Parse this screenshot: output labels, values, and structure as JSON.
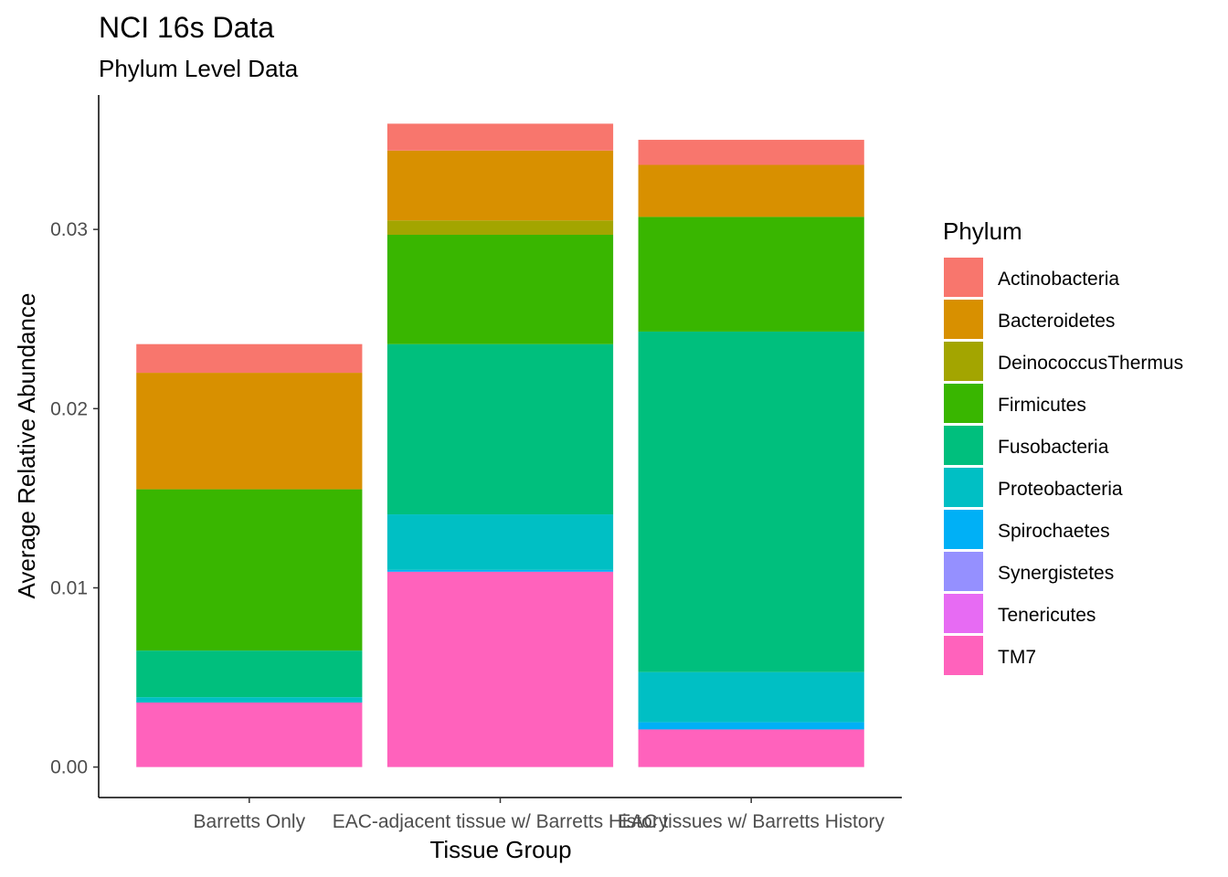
{
  "chart_data": {
    "type": "bar",
    "stacked": true,
    "title": "NCI 16s Data",
    "subtitle": "Phylum Level Data",
    "xlabel": "Tissue Group",
    "ylabel": "Average Relative Abundance",
    "categories": [
      "Barretts Only",
      "EAC-adjacent tissue w/ Barretts History",
      "EAC tissues w/ Barretts History"
    ],
    "ylim": [
      -0.0017,
      0.0375
    ],
    "yticks": [
      "0.00",
      "0.01",
      "0.02",
      "0.03"
    ],
    "yticks_values": [
      0,
      0.01,
      0.02,
      0.03
    ],
    "grid": false,
    "legend_title": "Phylum",
    "legend_position": "right",
    "series": [
      {
        "name": "Actinobacteria",
        "color": "#F8766D",
        "values": [
          0.0016,
          0.0015,
          0.0014
        ]
      },
      {
        "name": "Bacteroidetes",
        "color": "#D89000",
        "values": [
          0.0065,
          0.0039,
          0.0029
        ]
      },
      {
        "name": "DeinococcusThermus",
        "color": "#A3A500",
        "values": [
          0.0,
          0.0008,
          0.0
        ]
      },
      {
        "name": "Firmicutes",
        "color": "#39B600",
        "values": [
          0.009,
          0.0061,
          0.0064
        ]
      },
      {
        "name": "Fusobacteria",
        "color": "#00BF7D",
        "values": [
          0.0026,
          0.0095,
          0.019
        ]
      },
      {
        "name": "Proteobacteria",
        "color": "#00BFC4",
        "values": [
          0.0003,
          0.0031,
          0.0028
        ]
      },
      {
        "name": "Spirochaetes",
        "color": "#00B0F6",
        "values": [
          0.0,
          0.0001,
          0.0004
        ]
      },
      {
        "name": "Synergistetes",
        "color": "#9590FF",
        "values": [
          0.0,
          0.0,
          0.0
        ]
      },
      {
        "name": "Tenericutes",
        "color": "#E76BF3",
        "values": [
          0.0,
          0.0,
          0.0
        ]
      },
      {
        "name": "TM7",
        "color": "#FF62BC",
        "values": [
          0.0036,
          0.0109,
          0.0021
        ]
      }
    ]
  }
}
